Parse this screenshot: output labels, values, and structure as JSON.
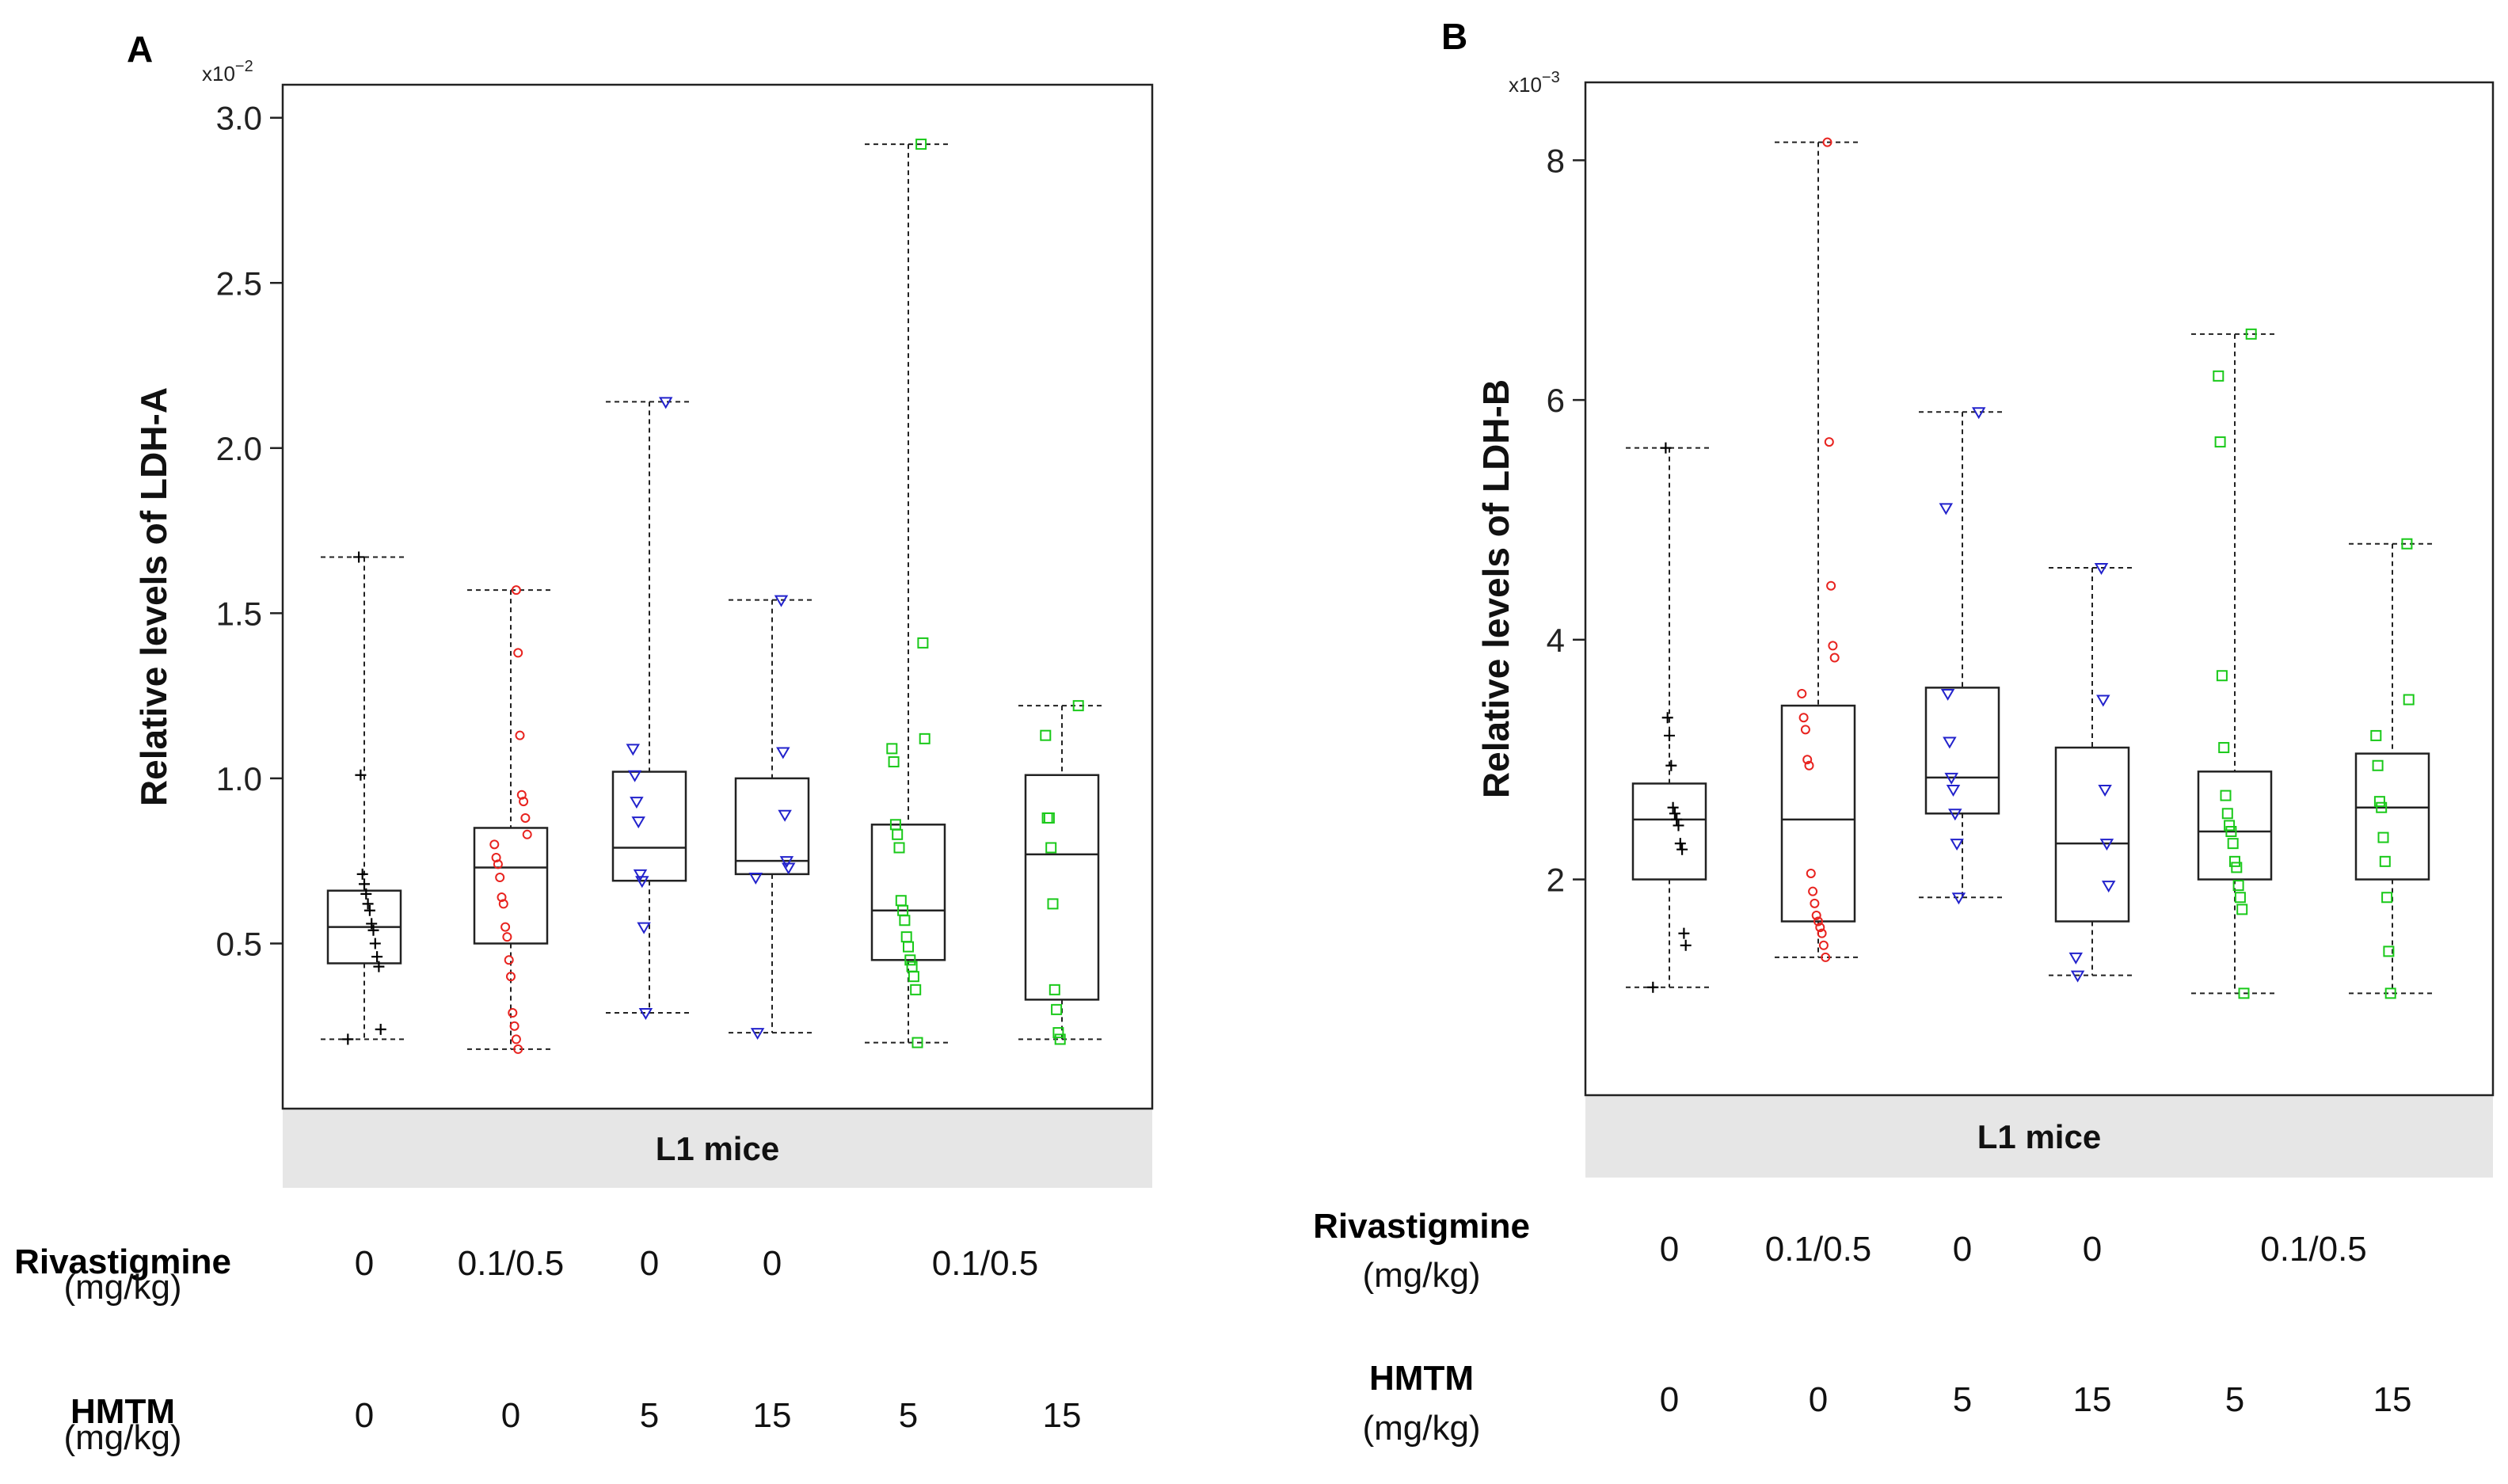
{
  "chart_data": [
    {
      "type": "box",
      "panel_letter": "A",
      "ylabel": "Relative levels of LDH-A",
      "y_exponent_label": "x10",
      "y_exponent_power": "−2",
      "ylim": [
        0.0,
        3.1
      ],
      "yticks": [
        0.5,
        1.0,
        1.5,
        2.0,
        2.5,
        3.0
      ],
      "ytick_labels": [
        "0.5",
        "1.0",
        "1.5",
        "2.0",
        "2.5",
        "3.0"
      ],
      "group_label": "L1 mice",
      "groups": [
        {
          "rivastigmine": "0",
          "hmtm": "0",
          "color": "#000000",
          "marker": "plus",
          "whisker_low": 0.21,
          "q1": 0.44,
          "median": 0.55,
          "q3": 0.66,
          "whisker_high": 1.67,
          "points": [
            0.21,
            0.24,
            0.43,
            0.46,
            0.5,
            0.54,
            0.56,
            0.6,
            0.62,
            0.65,
            0.68,
            0.71,
            1.01,
            1.67
          ]
        },
        {
          "rivastigmine": "0.1/0.5",
          "hmtm": "0",
          "color": "#e8231f",
          "marker": "circle",
          "whisker_low": 0.18,
          "q1": 0.5,
          "median": 0.73,
          "q3": 0.85,
          "whisker_high": 1.57,
          "points": [
            0.18,
            0.21,
            0.25,
            0.29,
            0.4,
            0.45,
            0.52,
            0.55,
            0.62,
            0.64,
            0.7,
            0.74,
            0.76,
            0.8,
            0.83,
            0.88,
            0.93,
            0.95,
            1.13,
            1.38,
            1.57
          ]
        },
        {
          "rivastigmine": "0",
          "hmtm": "5",
          "color": "#2222cc",
          "marker": "triangle",
          "whisker_low": 0.29,
          "q1": 0.69,
          "median": 0.79,
          "q3": 1.02,
          "whisker_high": 2.14,
          "points": [
            0.29,
            0.55,
            0.69,
            0.71,
            0.87,
            0.93,
            1.01,
            1.09,
            2.14
          ]
        },
        {
          "rivastigmine": "0",
          "hmtm": "15",
          "color": "#2222cc",
          "marker": "triangle",
          "whisker_low": 0.23,
          "q1": 0.71,
          "median": 0.75,
          "q3": 1.0,
          "whisker_high": 1.54,
          "points": [
            0.23,
            0.7,
            0.73,
            0.75,
            0.89,
            1.08,
            1.54
          ]
        },
        {
          "rivastigmine": "",
          "hmtm": "5",
          "color": "#19c919",
          "marker": "square",
          "whisker_low": 0.2,
          "q1": 0.45,
          "median": 0.6,
          "q3": 0.86,
          "whisker_high": 2.92,
          "points": [
            0.2,
            0.36,
            0.4,
            0.43,
            0.45,
            0.49,
            0.52,
            0.57,
            0.6,
            0.63,
            0.79,
            0.83,
            0.86,
            1.05,
            1.09,
            1.12,
            1.41,
            2.92
          ]
        },
        {
          "rivastigmine": "",
          "hmtm": "15",
          "color": "#19c919",
          "marker": "square",
          "whisker_low": 0.21,
          "q1": 0.33,
          "median": 0.77,
          "q3": 1.01,
          "whisker_high": 1.22,
          "points": [
            0.21,
            0.23,
            0.3,
            0.36,
            0.62,
            0.79,
            0.88,
            0.88,
            1.13,
            1.22
          ]
        }
      ],
      "riva_spanning": {
        "label": "0.1/0.5",
        "span_groups": [
          4,
          5
        ]
      }
    },
    {
      "type": "box",
      "panel_letter": "B",
      "ylabel": "Relative levels of LDH-B",
      "y_exponent_label": "x10",
      "y_exponent_power": "−3",
      "ylim": [
        0.2,
        8.65
      ],
      "yticks": [
        2,
        4,
        6,
        8
      ],
      "ytick_labels": [
        "2",
        "4",
        "6",
        "8"
      ],
      "group_label": "L1 mice",
      "groups": [
        {
          "rivastigmine": "0",
          "hmtm": "0",
          "color": "#000000",
          "marker": "plus",
          "whisker_low": 1.1,
          "q1": 2.0,
          "median": 2.5,
          "q3": 2.8,
          "whisker_high": 5.6,
          "points": [
            1.1,
            1.45,
            1.55,
            2.25,
            2.3,
            2.45,
            2.5,
            2.55,
            2.6,
            2.95,
            3.2,
            3.35,
            5.6
          ]
        },
        {
          "rivastigmine": "0.1/0.5",
          "hmtm": "0",
          "color": "#e8231f",
          "marker": "circle",
          "whisker_low": 1.35,
          "q1": 1.65,
          "median": 2.5,
          "q3": 3.45,
          "whisker_high": 8.15,
          "points": [
            1.35,
            1.45,
            1.55,
            1.6,
            1.65,
            1.7,
            1.8,
            1.9,
            2.05,
            2.95,
            3.0,
            3.25,
            3.35,
            3.55,
            3.85,
            3.95,
            4.45,
            5.65,
            8.15
          ]
        },
        {
          "rivastigmine": "0",
          "hmtm": "5",
          "color": "#2222cc",
          "marker": "triangle",
          "whisker_low": 1.85,
          "q1": 2.55,
          "median": 2.85,
          "q3": 3.6,
          "whisker_high": 5.9,
          "points": [
            1.85,
            2.3,
            2.55,
            2.75,
            2.85,
            3.15,
            3.55,
            5.1,
            5.9
          ]
        },
        {
          "rivastigmine": "0",
          "hmtm": "15",
          "color": "#2222cc",
          "marker": "triangle",
          "whisker_low": 1.2,
          "q1": 1.65,
          "median": 2.3,
          "q3": 3.1,
          "whisker_high": 4.6,
          "points": [
            1.2,
            1.35,
            1.95,
            2.3,
            2.75,
            3.5,
            4.6
          ]
        },
        {
          "rivastigmine": "",
          "hmtm": "5",
          "color": "#19c919",
          "marker": "square",
          "whisker_low": 1.05,
          "q1": 2.0,
          "median": 2.4,
          "q3": 2.9,
          "whisker_high": 6.55,
          "points": [
            1.05,
            1.75,
            1.85,
            1.95,
            2.1,
            2.15,
            2.3,
            2.4,
            2.45,
            2.55,
            2.7,
            3.1,
            3.7,
            5.65,
            6.2,
            6.55
          ]
        },
        {
          "rivastigmine": "",
          "hmtm": "15",
          "color": "#19c919",
          "marker": "square",
          "whisker_low": 1.05,
          "q1": 2.0,
          "median": 2.6,
          "q3": 3.05,
          "whisker_high": 4.8,
          "points": [
            1.05,
            1.4,
            1.85,
            2.15,
            2.35,
            2.6,
            2.65,
            2.95,
            3.2,
            3.5,
            4.8
          ]
        }
      ],
      "riva_spanning": {
        "label": "0.1/0.5",
        "span_groups": [
          4,
          5
        ]
      }
    }
  ],
  "rows": {
    "rivastigmine_label": "Rivastigmine",
    "hmtm_label": "HMTM",
    "unit": "(mg/kg)"
  }
}
